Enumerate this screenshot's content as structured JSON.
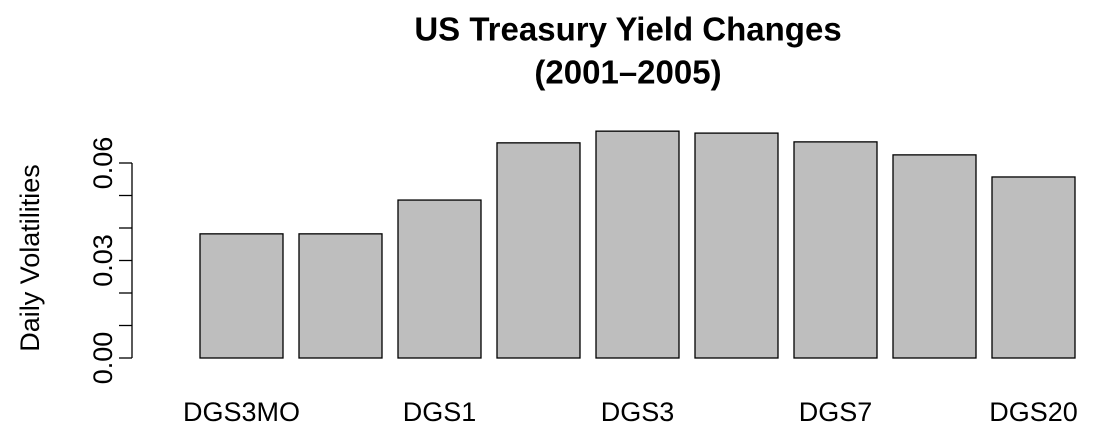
{
  "chart_data": {
    "type": "bar",
    "title": [
      "US Treasury Yield Changes",
      "(2001–2005)"
    ],
    "ylabel": "Daily Volatilities",
    "categories": [
      "DGS3MO",
      null,
      "DGS1",
      null,
      "DGS3",
      null,
      "DGS7",
      null,
      "DGS20"
    ],
    "values": [
      0.0382,
      0.0382,
      0.0486,
      0.0662,
      0.0698,
      0.0692,
      0.0665,
      0.0625,
      0.0557
    ],
    "color": "#bebebe",
    "ylim": [
      0,
      0.072
    ],
    "yticks": [
      {
        "value": 0,
        "label": "0.00"
      },
      {
        "value": 0.03,
        "label": "0.03"
      },
      {
        "value": 0.06,
        "label": "0.06"
      }
    ],
    "yminor_ticks": [
      0.01,
      0.02,
      0.04,
      0.05
    ],
    "grid": false
  }
}
